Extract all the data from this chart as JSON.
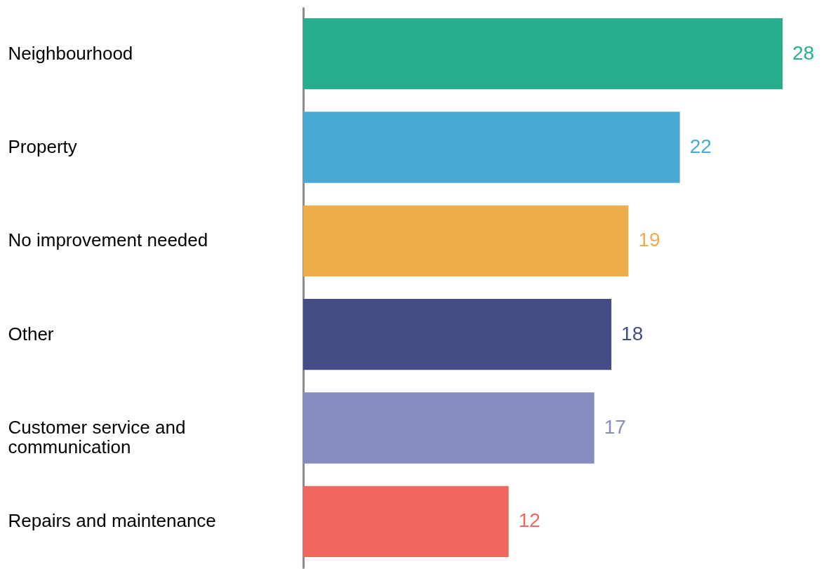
{
  "chart_data": {
    "type": "bar",
    "orientation": "horizontal",
    "categories": [
      "Neighbourhood",
      "Property",
      "No improvement needed",
      "Other",
      "Customer service and communication",
      "Repairs and maintenance"
    ],
    "values": [
      28,
      22,
      19,
      18,
      17,
      12
    ],
    "colors": [
      "#26ae8e",
      "#4aa9d5",
      "#edad4a",
      "#464c85",
      "#878cc0",
      "#f0675d"
    ],
    "data_labels": true,
    "grid": false
  }
}
